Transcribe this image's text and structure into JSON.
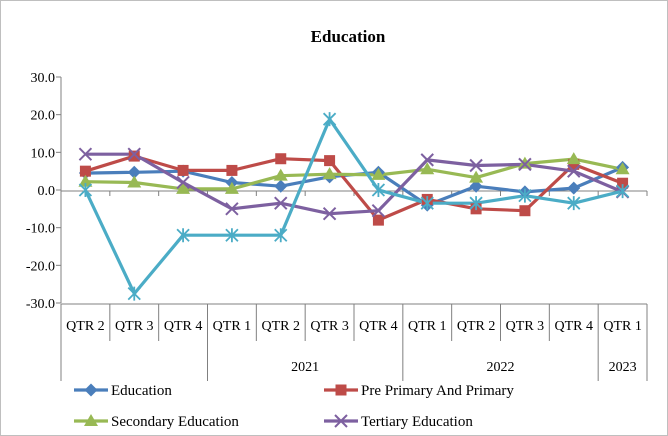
{
  "chart_data": {
    "type": "line",
    "title": "Education",
    "ylim": [
      -30,
      30
    ],
    "yticks": [
      "30.0",
      "20.0",
      "10.0",
      "0.0",
      "-10.0",
      "-20.0",
      "-30.0"
    ],
    "categories": [
      "QTR 2",
      "QTR 3",
      "QTR 4",
      "QTR 1",
      "QTR 2",
      "QTR 3",
      "QTR 4",
      "QTR 1",
      "QTR 2",
      "QTR 3",
      "QTR 4",
      "QTR 1"
    ],
    "year_groups": [
      {
        "label": "2021",
        "start": 3,
        "end": 6
      },
      {
        "label": "2022",
        "start": 7,
        "end": 10
      },
      {
        "label": "2023",
        "start": 11,
        "end": 11
      }
    ],
    "legend_position": "bottom",
    "grid": false,
    "series": [
      {
        "name": "Education",
        "color": "#4a7ebb",
        "marker": "diamond",
        "values": [
          4.5,
          4.7,
          5.0,
          2.0,
          1.0,
          3.5,
          4.7,
          -4.0,
          1.0,
          -0.5,
          0.5,
          6.0
        ]
      },
      {
        "name": "Pre Primary And Primary",
        "color": "#be4b48",
        "marker": "square",
        "values": [
          5.0,
          9.0,
          5.2,
          5.2,
          8.3,
          7.8,
          -8.0,
          -2.5,
          -5.0,
          -5.5,
          6.8,
          1.8
        ]
      },
      {
        "name": "Secondary Education",
        "color": "#98b954",
        "marker": "triangle",
        "values": [
          2.2,
          2.0,
          0.3,
          0.3,
          3.8,
          4.2,
          4.0,
          5.5,
          3.3,
          7.0,
          8.2,
          5.5
        ]
      },
      {
        "name": "Tertiary Education",
        "color": "#7d60a0",
        "marker": "x",
        "values": [
          9.5,
          9.5,
          2.0,
          -5.0,
          -3.5,
          -6.3,
          -5.5,
          8.0,
          6.5,
          6.8,
          5.0,
          -0.5
        ]
      },
      {
        "name": "",
        "color": "#4bacc6",
        "marker": "star",
        "values": [
          0.0,
          -27.5,
          -12.0,
          -12.0,
          -12.0,
          18.8,
          0.0,
          -3.5,
          -3.5,
          -1.5,
          -3.5,
          -0.3
        ]
      }
    ]
  }
}
